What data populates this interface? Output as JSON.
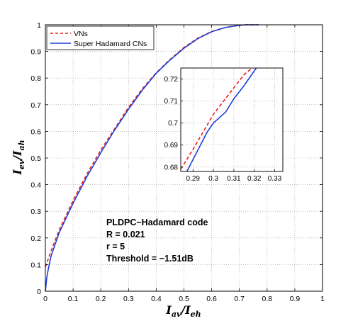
{
  "chart_data": {
    "type": "line",
    "xlabel": {
      "base": "I",
      "base_sub": "av",
      "sep": "/",
      "den": "I",
      "den_sub": "eh"
    },
    "ylabel": {
      "base": "I",
      "base_sub": "ev",
      "sep": "/",
      "den": "I",
      "den_sub": "ah"
    },
    "xlim": [
      0,
      1
    ],
    "ylim": [
      0,
      1
    ],
    "grid": true,
    "legend_position": "top-left",
    "x_ticks": [
      "0",
      "0.1",
      "0.2",
      "0.3",
      "0.4",
      "0.5",
      "0.6",
      "0.7",
      "0.8",
      "0.9",
      "1"
    ],
    "y_ticks": [
      "0",
      "0.1",
      "0.2",
      "0.3",
      "0.4",
      "0.5",
      "0.6",
      "0.7",
      "0.8",
      "0.9",
      "1"
    ],
    "series": [
      {
        "name": "VNs",
        "color": "#e8211d",
        "style": "dashed",
        "x": [
          0.0,
          0.02,
          0.05,
          0.1,
          0.15,
          0.2,
          0.25,
          0.3,
          0.35,
          0.4,
          0.45,
          0.5,
          0.55,
          0.6,
          0.65,
          0.7,
          0.72,
          0.75,
          0.77
        ],
        "y": [
          0.09,
          0.15,
          0.23,
          0.34,
          0.44,
          0.53,
          0.61,
          0.69,
          0.76,
          0.82,
          0.87,
          0.915,
          0.95,
          0.975,
          0.99,
          0.998,
          1.0,
          1.0,
          1.0
        ]
      },
      {
        "name": "Super Hadamard CNs",
        "color": "#1f3fd6",
        "style": "solid",
        "x": [
          0.0,
          0.005,
          0.01,
          0.02,
          0.05,
          0.1,
          0.15,
          0.2,
          0.25,
          0.3,
          0.35,
          0.4,
          0.45,
          0.5,
          0.55,
          0.6,
          0.65,
          0.7,
          0.72,
          0.75,
          0.77
        ],
        "y": [
          0.0,
          0.05,
          0.08,
          0.13,
          0.22,
          0.33,
          0.43,
          0.52,
          0.605,
          0.683,
          0.755,
          0.818,
          0.868,
          0.912,
          0.948,
          0.974,
          0.99,
          0.998,
          1.0,
          1.0,
          1.0
        ]
      }
    ],
    "inset": {
      "xlim": [
        0.284,
        0.334
      ],
      "ylim": [
        0.678,
        0.725
      ],
      "x_ticks": [
        "0.29",
        "0.3",
        "0.31",
        "0.32",
        "0.33"
      ],
      "y_ticks": [
        "0.68",
        "0.69",
        "0.7",
        "0.71",
        "0.72"
      ],
      "series": [
        {
          "name": "VNs",
          "x": [
            0.284,
            0.29,
            0.295,
            0.3,
            0.305,
            0.31,
            0.315,
            0.319
          ],
          "y": [
            0.679,
            0.688,
            0.696,
            0.704,
            0.71,
            0.716,
            0.722,
            0.725
          ]
        },
        {
          "name": "Super Hadamard CNs",
          "x": [
            0.287,
            0.292,
            0.297,
            0.3,
            0.306,
            0.31,
            0.315,
            0.321
          ],
          "y": [
            0.678,
            0.687,
            0.696,
            0.7,
            0.705,
            0.711,
            0.717,
            0.725
          ]
        }
      ]
    },
    "annotation": [
      "PLDPC−Hadamard code",
      "R = 0.021",
      "r = 5",
      "Threshold = −1.51dB"
    ]
  }
}
